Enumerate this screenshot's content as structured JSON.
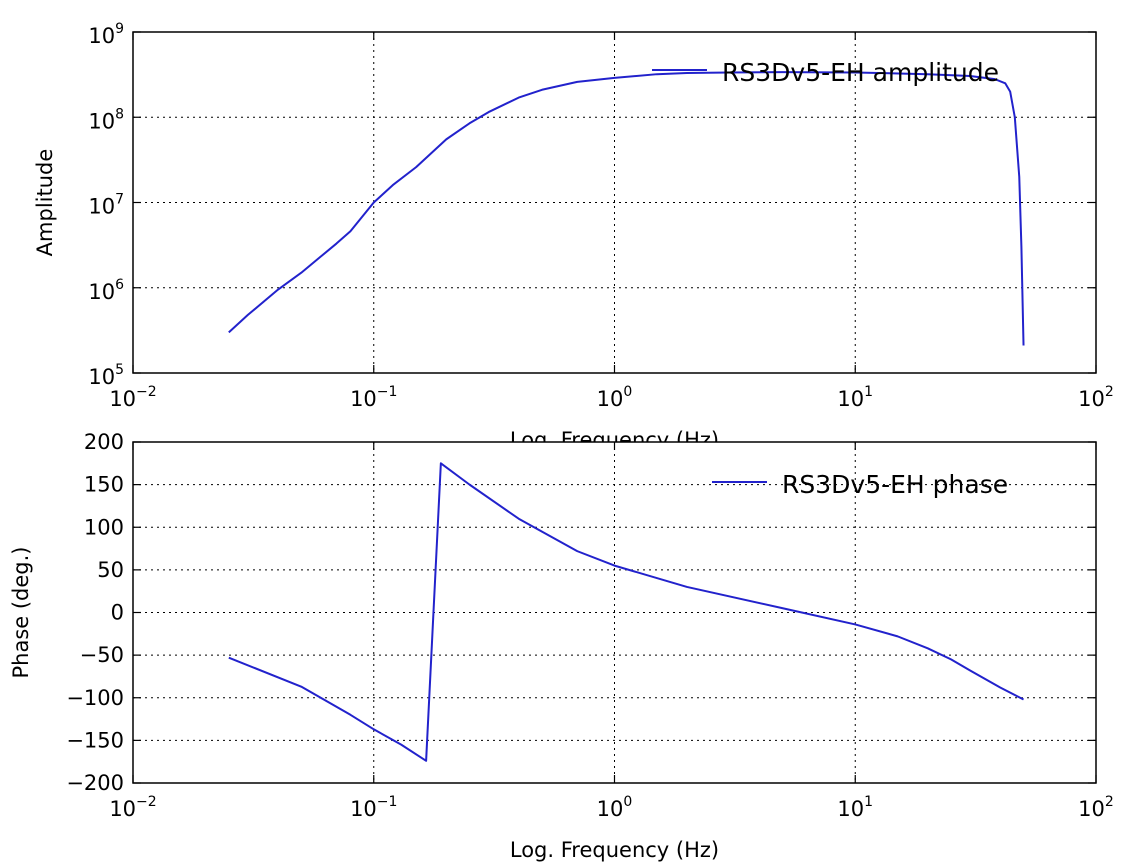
{
  "chart_data": [
    {
      "type": "line",
      "title": "",
      "xlabel": "Log. Frequency (Hz)",
      "ylabel": "Amplitude",
      "xscale": "log",
      "yscale": "log",
      "xlim": [
        0.01,
        100
      ],
      "ylim": [
        100000,
        1000000000
      ],
      "x_ticks": [
        {
          "value": 0.01,
          "base": "10",
          "exp": "−2"
        },
        {
          "value": 0.1,
          "base": "10",
          "exp": "−1"
        },
        {
          "value": 1,
          "base": "10",
          "exp": "0"
        },
        {
          "value": 10,
          "base": "10",
          "exp": "1"
        },
        {
          "value": 100,
          "base": "10",
          "exp": "2"
        }
      ],
      "y_ticks": [
        {
          "value": 100000,
          "base": "10",
          "exp": "5"
        },
        {
          "value": 1000000,
          "base": "10",
          "exp": "6"
        },
        {
          "value": 10000000,
          "base": "10",
          "exp": "7"
        },
        {
          "value": 100000000,
          "base": "10",
          "exp": "8"
        },
        {
          "value": 1000000000,
          "base": "10",
          "exp": "9"
        }
      ],
      "grid": true,
      "legend_position": "top-right",
      "series": [
        {
          "name": "RS3Dv5-EH amplitude",
          "color": "#2222cc",
          "x": [
            0.025,
            0.03,
            0.04,
            0.05,
            0.06,
            0.07,
            0.08,
            0.1,
            0.12,
            0.15,
            0.2,
            0.25,
            0.3,
            0.4,
            0.5,
            0.7,
            1,
            1.5,
            2,
            3,
            5,
            10,
            20,
            30,
            38,
            42,
            44,
            46,
            48,
            49,
            50
          ],
          "y": [
            300000,
            480000,
            950000,
            1500000,
            2300000,
            3300000,
            4600000,
            10000000,
            16000000,
            26000000,
            55000000,
            85000000,
            115000000,
            170000000,
            210000000,
            260000000,
            290000000,
            320000000,
            330000000,
            335000000,
            338000000,
            335000000,
            320000000,
            305000000,
            280000000,
            250000000,
            200000000,
            100000000,
            20000000,
            3000000,
            210000
          ]
        }
      ]
    },
    {
      "type": "line",
      "title": "",
      "xlabel": "Log. Frequency (Hz)",
      "ylabel": "Phase (deg.)",
      "xscale": "log",
      "yscale": "linear",
      "xlim": [
        0.01,
        100
      ],
      "ylim": [
        -200,
        200
      ],
      "x_ticks": [
        {
          "value": 0.01,
          "base": "10",
          "exp": "−2"
        },
        {
          "value": 0.1,
          "base": "10",
          "exp": "−1"
        },
        {
          "value": 1,
          "base": "10",
          "exp": "0"
        },
        {
          "value": 10,
          "base": "10",
          "exp": "1"
        },
        {
          "value": 100,
          "base": "10",
          "exp": "2"
        }
      ],
      "y_ticks": [
        {
          "value": -200,
          "label": "−200"
        },
        {
          "value": -150,
          "label": "−150"
        },
        {
          "value": -100,
          "label": "−100"
        },
        {
          "value": -50,
          "label": "−50"
        },
        {
          "value": 0,
          "label": "0"
        },
        {
          "value": 50,
          "label": "50"
        },
        {
          "value": 100,
          "label": "100"
        },
        {
          "value": 150,
          "label": "150"
        },
        {
          "value": 200,
          "label": "200"
        }
      ],
      "grid": true,
      "legend_position": "top-right",
      "series": [
        {
          "name": "RS3Dv5-EH phase",
          "color": "#2222cc",
          "x": [
            0.025,
            0.05,
            0.08,
            0.1,
            0.13,
            0.165,
            0.19,
            0.25,
            0.4,
            0.7,
            1,
            2,
            5,
            10,
            15,
            20,
            25,
            30,
            40,
            50
          ],
          "y": [
            -53,
            -87,
            -120,
            -137,
            -155,
            -174,
            175,
            150,
            110,
            72,
            55,
            30,
            5,
            -14,
            -28,
            -42,
            -55,
            -68,
            -88,
            -102
          ]
        }
      ]
    }
  ]
}
